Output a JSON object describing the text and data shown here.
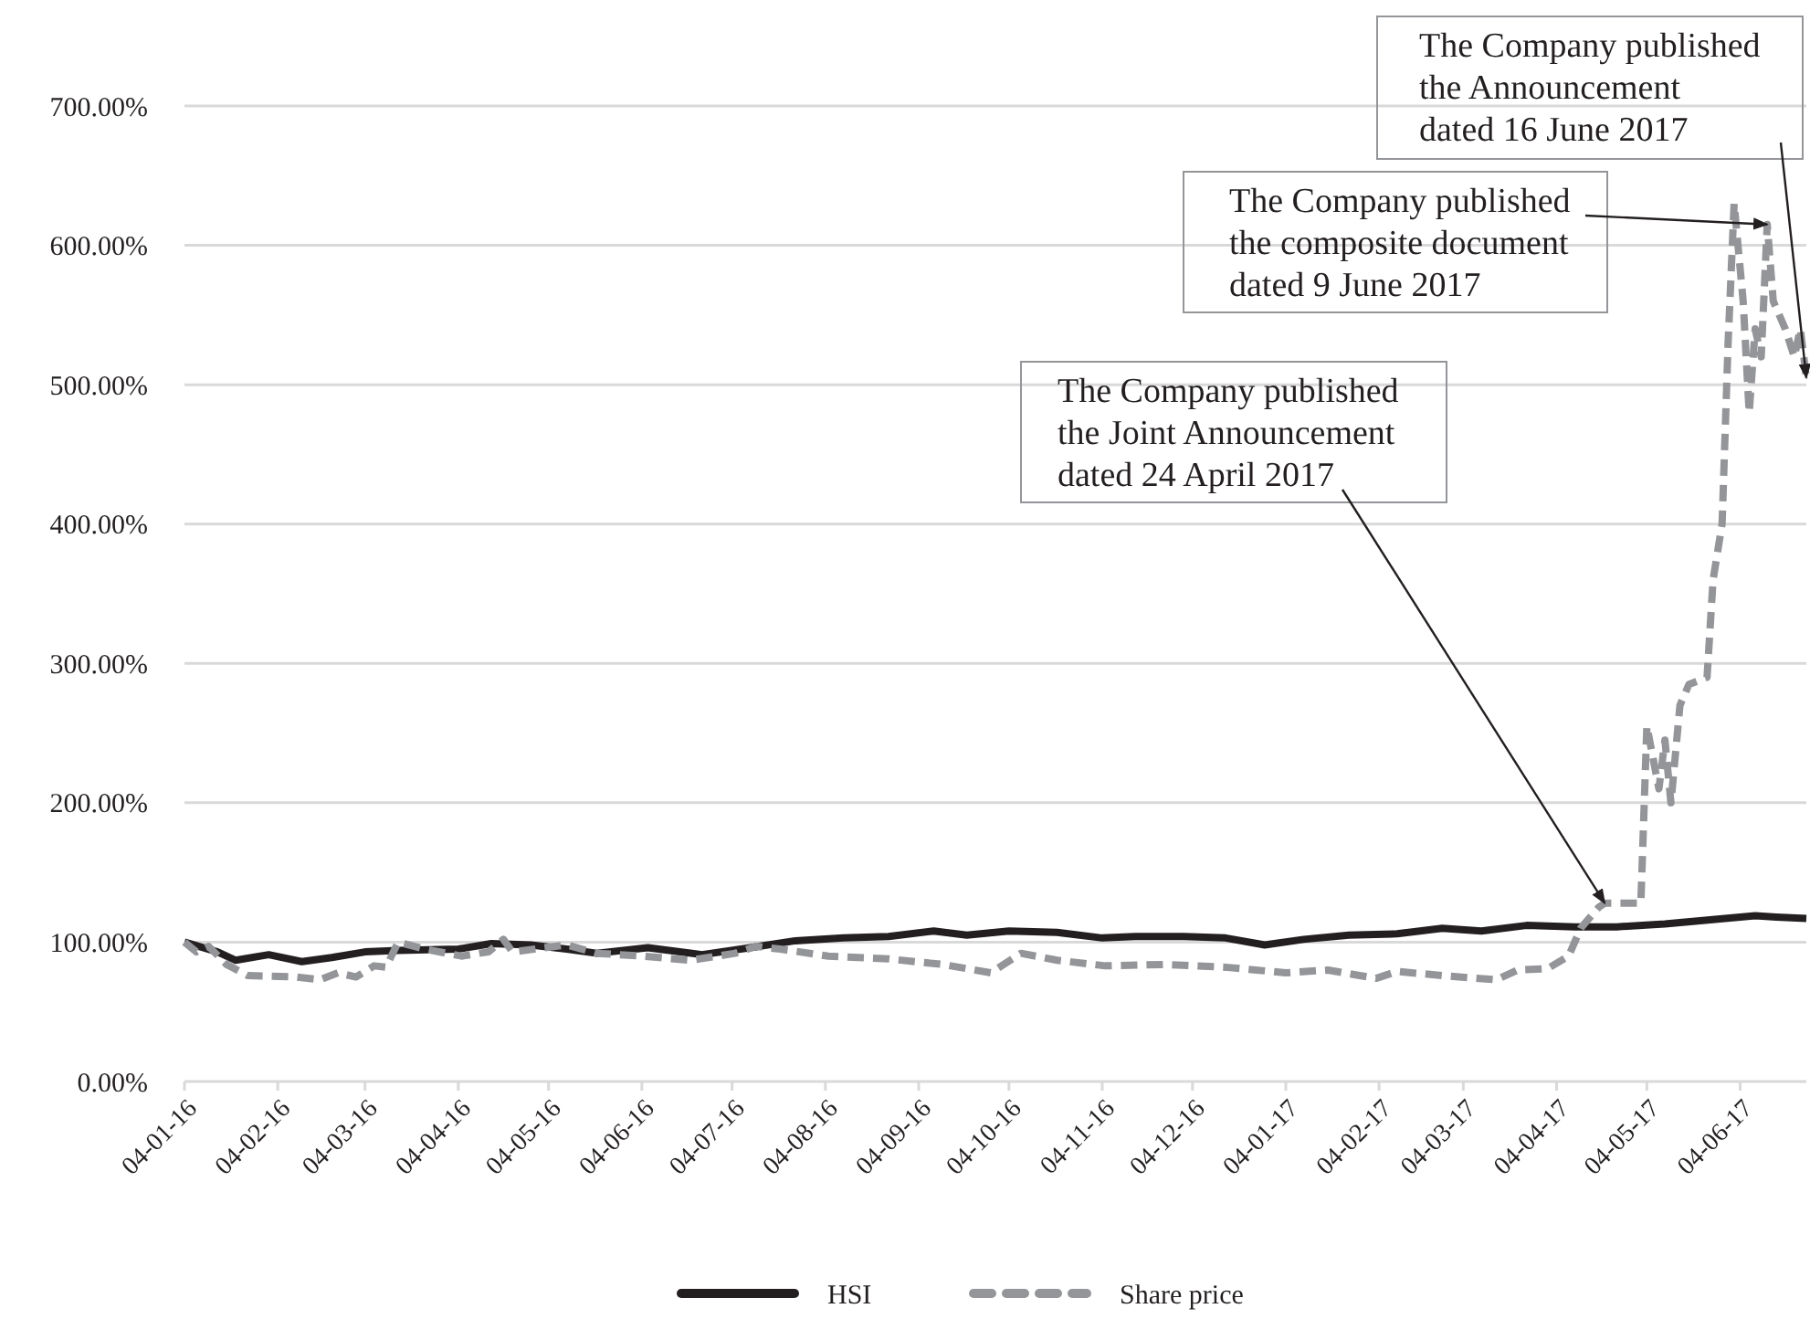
{
  "chart_data": {
    "type": "line",
    "x": [
      "2016-01-04",
      "2016-01-15",
      "2016-01-21",
      "2016-02-01",
      "2016-02-12",
      "2016-02-22",
      "2016-03-04",
      "2016-03-15",
      "2016-04-04",
      "2016-04-15",
      "2016-04-28",
      "2016-05-10",
      "2016-05-20",
      "2016-06-06",
      "2016-06-24",
      "2016-07-10",
      "2016-07-25",
      "2016-08-10",
      "2016-08-25",
      "2016-09-09",
      "2016-09-20",
      "2016-10-04",
      "2016-10-20",
      "2016-11-04",
      "2016-11-15",
      "2016-12-01",
      "2016-12-15",
      "2016-12-28",
      "2017-01-10",
      "2017-01-25",
      "2017-02-10",
      "2017-02-25",
      "2017-03-10",
      "2017-03-25",
      "2017-04-10",
      "2017-04-24",
      "2017-05-10",
      "2017-05-25",
      "2017-06-09",
      "2017-06-16",
      "2017-06-26"
    ],
    "series": [
      {
        "name": "HSI",
        "color": "#231f20",
        "line_style": "solid",
        "values": [
          100,
          93,
          87,
          91,
          86,
          89,
          93,
          94,
          95,
          99,
          98,
          95,
          92,
          96,
          91,
          96,
          101,
          103,
          104,
          108,
          105,
          108,
          107,
          103,
          104,
          104,
          103,
          98,
          102,
          105,
          106,
          110,
          108,
          112,
          111,
          111,
          113,
          116,
          119,
          118,
          117
        ]
      },
      {
        "name": "Share price",
        "color": "#939598",
        "line_style": "dashed",
        "x": [
          "2016-01-04",
          "2016-01-08",
          "2016-01-12",
          "2016-01-18",
          "2016-01-25",
          "2016-02-10",
          "2016-02-18",
          "2016-02-24",
          "2016-03-01",
          "2016-03-07",
          "2016-03-11",
          "2016-03-15",
          "2016-03-24",
          "2016-04-05",
          "2016-04-14",
          "2016-04-19",
          "2016-04-22",
          "2016-05-10",
          "2016-05-20",
          "2016-06-04",
          "2016-06-20",
          "2016-07-05",
          "2016-07-12",
          "2016-07-20",
          "2016-08-05",
          "2016-08-25",
          "2016-09-12",
          "2016-09-28",
          "2016-10-08",
          "2016-10-20",
          "2016-11-05",
          "2016-11-25",
          "2016-12-15",
          "2017-01-04",
          "2017-01-18",
          "2017-02-03",
          "2017-02-10",
          "2017-02-25",
          "2017-03-15",
          "2017-03-22",
          "2017-04-01",
          "2017-04-08",
          "2017-04-12",
          "2017-04-18",
          "2017-04-20",
          "2017-05-02",
          "2017-05-04",
          "2017-05-08",
          "2017-05-10",
          "2017-05-12",
          "2017-05-15",
          "2017-05-18",
          "2017-05-24",
          "2017-05-26",
          "2017-05-29",
          "2017-05-31",
          "2017-06-02",
          "2017-06-05",
          "2017-06-07",
          "2017-06-09",
          "2017-06-11",
          "2017-06-13",
          "2017-06-15",
          "2017-06-19",
          "2017-06-22",
          "2017-06-24",
          "2017-06-26"
        ],
        "values": [
          100,
          93,
          97,
          84,
          76,
          75,
          73,
          78,
          75,
          83,
          82,
          100,
          95,
          90,
          93,
          102,
          93,
          98,
          92,
          90,
          87,
          92,
          97,
          95,
          90,
          88,
          84,
          78,
          92,
          87,
          83,
          84,
          82,
          78,
          80,
          74,
          79,
          76,
          73,
          80,
          81,
          90,
          110,
          125,
          128,
          128,
          255,
          210,
          245,
          200,
          270,
          285,
          290,
          360,
          400,
          530,
          630,
          560,
          480,
          540,
          520,
          615,
          560,
          540,
          520,
          540,
          505
        ]
      }
    ],
    "xlim": [
      "2016-01-04",
      "2017-06-26"
    ],
    "xticks": [
      {
        "value": "2016-01-04",
        "label": "04-01-16"
      },
      {
        "value": "2016-02-04",
        "label": "04-02-16"
      },
      {
        "value": "2016-03-04",
        "label": "04-03-16"
      },
      {
        "value": "2016-04-04",
        "label": "04-04-16"
      },
      {
        "value": "2016-05-04",
        "label": "04-05-16"
      },
      {
        "value": "2016-06-04",
        "label": "04-06-16"
      },
      {
        "value": "2016-07-04",
        "label": "04-07-16"
      },
      {
        "value": "2016-08-04",
        "label": "04-08-16"
      },
      {
        "value": "2016-09-04",
        "label": "04-09-16"
      },
      {
        "value": "2016-10-04",
        "label": "04-10-16"
      },
      {
        "value": "2016-11-04",
        "label": "04-11-16"
      },
      {
        "value": "2016-12-04",
        "label": "04-12-16"
      },
      {
        "value": "2017-01-04",
        "label": "04-01-17"
      },
      {
        "value": "2017-02-04",
        "label": "04-02-17"
      },
      {
        "value": "2017-03-04",
        "label": "04-03-17"
      },
      {
        "value": "2017-04-04",
        "label": "04-04-17"
      },
      {
        "value": "2017-05-04",
        "label": "04-05-17"
      },
      {
        "value": "2017-06-04",
        "label": "04-06-17"
      }
    ],
    "ylim": [
      0,
      700
    ],
    "yticks": [
      {
        "value": 0,
        "label": "0.00%"
      },
      {
        "value": 100,
        "label": "100.00%"
      },
      {
        "value": 200,
        "label": "200.00%"
      },
      {
        "value": 300,
        "label": "300.00%"
      },
      {
        "value": 400,
        "label": "400.00%"
      },
      {
        "value": 500,
        "label": "500.00%"
      },
      {
        "value": 600,
        "label": "600.00%"
      },
      {
        "value": 700,
        "label": "700.00%"
      }
    ],
    "grid": "y",
    "legend": "bottom",
    "annotations": [
      {
        "text": "The Company published\nthe Joint Announcement\ndated 24 April 2017",
        "x": "2017-04-20",
        "y": 128
      },
      {
        "text": "The Company published\nthe composite document\ndated 9 June 2017",
        "x": "2017-06-13",
        "y": 615
      },
      {
        "text": "The Company published\nthe Announcement\ndated 16 June 2017",
        "x": "2017-06-26",
        "y": 505
      }
    ]
  }
}
